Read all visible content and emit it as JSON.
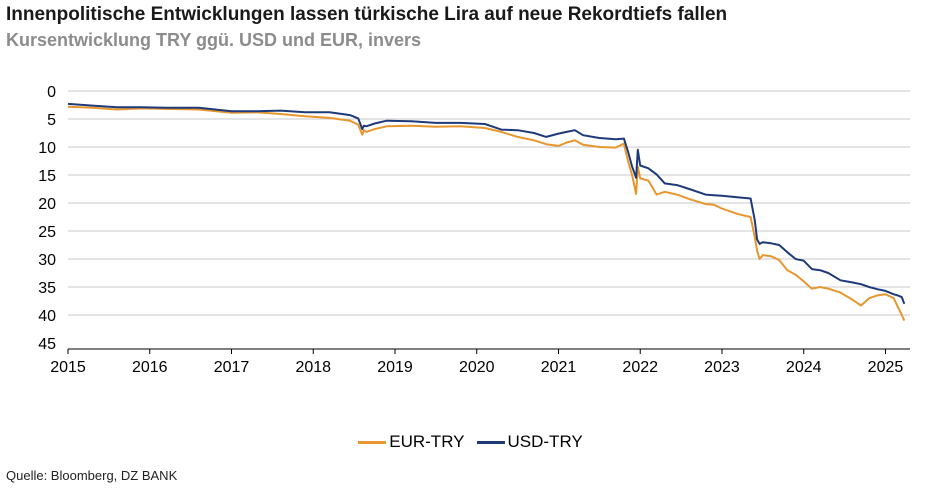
{
  "header": {
    "title": "Innenpolitische Entwicklungen lassen türkische Lira auf neue Rekordtiefs fallen",
    "subtitle": "Kursentwicklung TRY ggü. USD und EUR, invers"
  },
  "footer": {
    "source": "Quelle: Bloomberg, DZ BANK"
  },
  "chart_data": {
    "type": "line",
    "title": "Innenpolitische Entwicklungen lassen türkische Lira auf neue Rekordtiefs fallen",
    "subtitle": "Kursentwicklung TRY ggü. USD und EUR, invers",
    "xlabel": "",
    "ylabel": "",
    "y_inverted": true,
    "ylim": [
      0,
      45
    ],
    "yticks": [
      0,
      5,
      10,
      15,
      20,
      25,
      30,
      35,
      40,
      45
    ],
    "xlim": [
      2015.0,
      2025.3
    ],
    "xticks": [
      2015,
      2016,
      2017,
      2018,
      2019,
      2020,
      2021,
      2022,
      2023,
      2024,
      2025
    ],
    "grid": "horizontal",
    "legend_position": "bottom",
    "series": [
      {
        "name": "EUR-TRY",
        "color": "#e8962e",
        "x": [
          2015.0,
          2015.3,
          2015.6,
          2015.9,
          2016.2,
          2016.6,
          2017.0,
          2017.3,
          2017.6,
          2017.9,
          2018.2,
          2018.45,
          2018.55,
          2018.6,
          2018.62,
          2018.65,
          2018.75,
          2018.9,
          2019.2,
          2019.5,
          2019.8,
          2020.1,
          2020.3,
          2020.5,
          2020.7,
          2020.85,
          2021.0,
          2021.1,
          2021.2,
          2021.3,
          2021.5,
          2021.7,
          2021.8,
          2021.85,
          2021.9,
          2021.95,
          2021.97,
          2022.0,
          2022.1,
          2022.2,
          2022.3,
          2022.45,
          2022.6,
          2022.8,
          2022.9,
          2023.0,
          2023.2,
          2023.35,
          2023.4,
          2023.43,
          2023.46,
          2023.5,
          2023.6,
          2023.7,
          2023.8,
          2023.9,
          2024.0,
          2024.1,
          2024.2,
          2024.3,
          2024.45,
          2024.6,
          2024.7,
          2024.8,
          2024.9,
          2025.0,
          2025.1,
          2025.15,
          2025.2,
          2025.23
        ],
        "values": [
          2.8,
          3.0,
          3.3,
          3.1,
          3.2,
          3.3,
          3.9,
          3.8,
          4.1,
          4.5,
          4.8,
          5.3,
          6.0,
          7.8,
          7.0,
          7.3,
          6.8,
          6.3,
          6.2,
          6.4,
          6.3,
          6.6,
          7.3,
          8.2,
          8.8,
          9.5,
          9.8,
          9.2,
          8.8,
          9.6,
          10.0,
          10.1,
          9.4,
          12.5,
          15.0,
          18.4,
          13.5,
          15.6,
          16.0,
          18.5,
          18.0,
          18.5,
          19.3,
          20.2,
          20.3,
          21.0,
          22.0,
          22.5,
          26.0,
          28.5,
          30.0,
          29.3,
          29.5,
          30.2,
          32.0,
          32.8,
          34.0,
          35.3,
          35.0,
          35.3,
          36.0,
          37.3,
          38.3,
          37.0,
          36.5,
          36.3,
          37.0,
          38.5,
          40.0,
          41.0
        ]
      },
      {
        "name": "USD-TRY",
        "color": "#1f3a7a",
        "x": [
          2015.0,
          2015.3,
          2015.6,
          2015.9,
          2016.2,
          2016.6,
          2017.0,
          2017.3,
          2017.6,
          2017.9,
          2018.2,
          2018.45,
          2018.55,
          2018.6,
          2018.62,
          2018.65,
          2018.75,
          2018.9,
          2019.2,
          2019.5,
          2019.8,
          2020.1,
          2020.3,
          2020.5,
          2020.7,
          2020.85,
          2021.0,
          2021.1,
          2021.2,
          2021.3,
          2021.5,
          2021.7,
          2021.8,
          2021.85,
          2021.9,
          2021.95,
          2021.97,
          2022.0,
          2022.1,
          2022.2,
          2022.3,
          2022.45,
          2022.6,
          2022.8,
          2022.9,
          2023.0,
          2023.2,
          2023.35,
          2023.4,
          2023.43,
          2023.46,
          2023.5,
          2023.6,
          2023.7,
          2023.8,
          2023.9,
          2024.0,
          2024.1,
          2024.2,
          2024.3,
          2024.45,
          2024.6,
          2024.7,
          2024.8,
          2024.9,
          2025.0,
          2025.1,
          2025.15,
          2025.2,
          2025.23
        ],
        "values": [
          2.3,
          2.6,
          2.9,
          2.9,
          3.0,
          3.0,
          3.6,
          3.6,
          3.5,
          3.8,
          3.8,
          4.3,
          4.9,
          6.8,
          6.2,
          6.3,
          5.8,
          5.3,
          5.4,
          5.7,
          5.7,
          5.9,
          6.9,
          7.0,
          7.5,
          8.2,
          7.6,
          7.3,
          7.0,
          7.9,
          8.4,
          8.6,
          8.5,
          10.8,
          13.5,
          15.5,
          10.5,
          13.3,
          13.8,
          14.9,
          16.5,
          16.8,
          17.5,
          18.5,
          18.6,
          18.7,
          19.0,
          19.2,
          23.0,
          26.5,
          27.3,
          27.0,
          27.2,
          27.5,
          28.8,
          30.0,
          30.3,
          31.8,
          32.0,
          32.5,
          33.8,
          34.2,
          34.5,
          35.0,
          35.4,
          35.7,
          36.3,
          36.5,
          36.8,
          38.0
        ]
      }
    ]
  }
}
